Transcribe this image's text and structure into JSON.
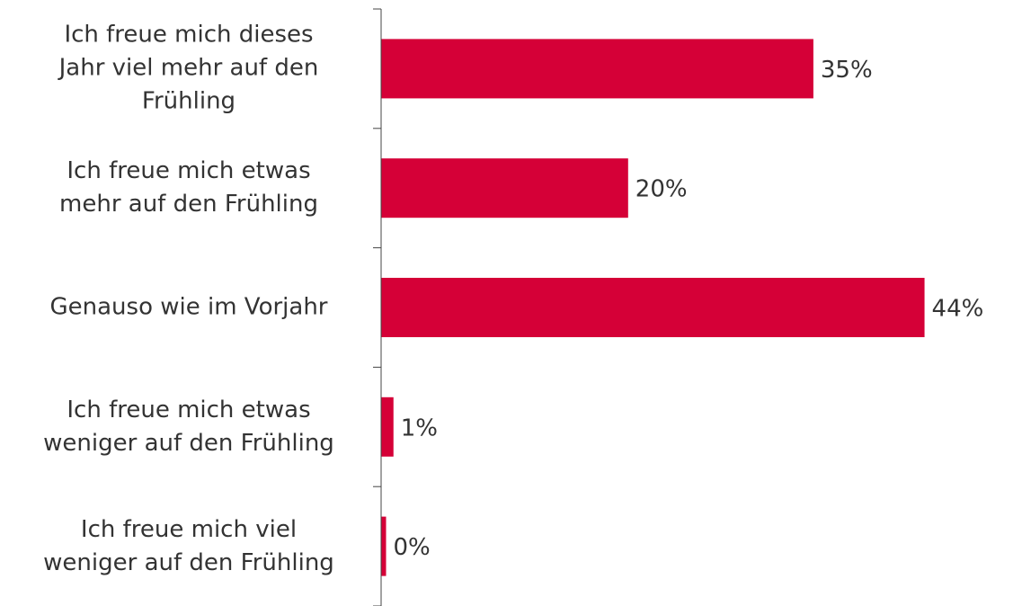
{
  "chart_data": {
    "type": "hbar",
    "categories": [
      "Ich freue mich dieses\nJahr viel mehr auf den\nFrühling",
      "Ich freue mich etwas\nmehr auf den Frühling",
      "Genauso wie im Vorjahr",
      "Ich freue mich etwas\nweniger auf den Frühling",
      "Ich freue mich viel\nweniger auf den Frühling"
    ],
    "values": [
      35,
      20,
      44,
      1,
      0.4
    ],
    "value_labels": [
      "35%",
      "20%",
      "44%",
      "1%",
      "0%"
    ],
    "color": "#d50037",
    "xlim": [
      0,
      50
    ]
  }
}
